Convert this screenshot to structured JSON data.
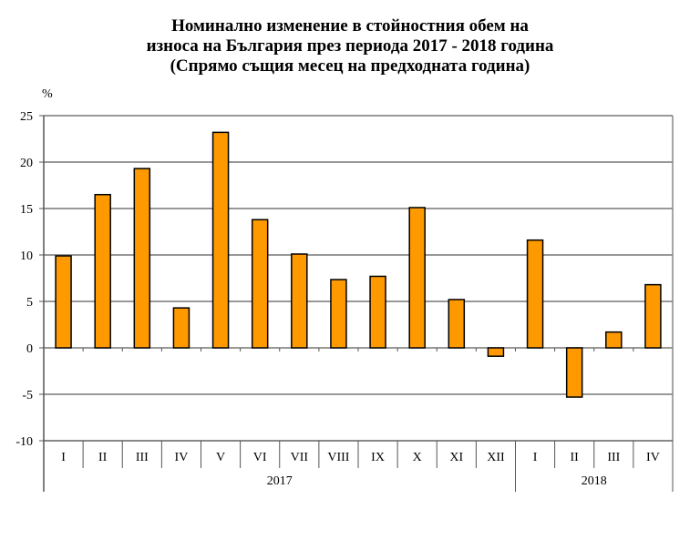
{
  "chart_data": {
    "type": "bar",
    "title": [
      "Номинално изменение в стойностния обем на",
      "износа на България през периода 2017 - 2018 година",
      "(Спрямо същия месец на предходната година)"
    ],
    "ylabel": "%",
    "xlabel": "",
    "ylim": [
      -10,
      25
    ],
    "yticks": [
      -10,
      -5,
      0,
      5,
      10,
      15,
      20,
      25
    ],
    "grid": true,
    "categories": [
      "I",
      "II",
      "III",
      "IV",
      "V",
      "VI",
      "VII",
      "VIII",
      "IX",
      "X",
      "XI",
      "XII",
      "I",
      "II",
      "III",
      "IV"
    ],
    "groups": [
      {
        "label": "2017",
        "count": 12
      },
      {
        "label": "2018",
        "count": 4
      }
    ],
    "values": [
      9.9,
      16.5,
      19.3,
      4.3,
      23.2,
      13.8,
      10.1,
      7.35,
      7.7,
      15.1,
      5.2,
      -0.9,
      11.6,
      -5.3,
      1.7,
      6.8
    ],
    "bar_color": "#FF9900"
  }
}
